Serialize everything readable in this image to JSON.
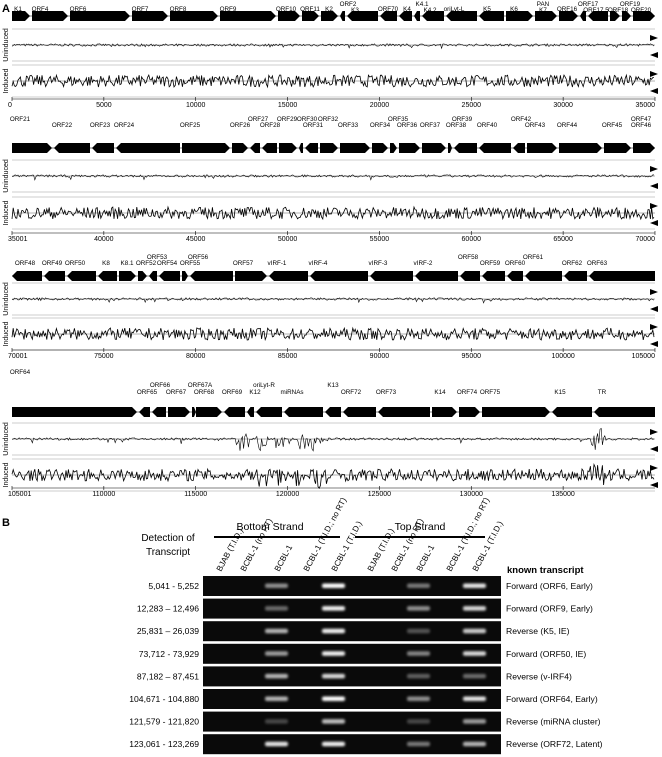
{
  "panel_a": {
    "label": "A",
    "track_labels": [
      "Uninduced",
      "Induced"
    ],
    "rows": [
      {
        "genes": [
          "K1",
          "ORF4",
          "ORF6",
          "ORF7",
          "ORF8",
          "ORF9",
          "ORF10",
          "ORF11",
          "K2",
          "ORF2",
          "K3",
          "ORF70",
          "K4",
          "K4.1",
          "K4.2",
          "oriLyt-L",
          "K5",
          "K6",
          "PAN",
          "K7",
          "ORF16",
          "ORF17",
          "ORF17.5",
          "ORF18",
          "ORF19",
          "ORF20"
        ],
        "ticks": [
          0,
          5000,
          10000,
          15000,
          20000,
          25000,
          30000,
          35000
        ]
      },
      {
        "genes": [
          "ORF21",
          "ORF22",
          "ORF23",
          "ORF24",
          "ORF25",
          "ORF26",
          "ORF27",
          "ORF28",
          "ORF29",
          "ORF30",
          "ORF31",
          "ORF32",
          "ORF33",
          "ORF34",
          "ORF35",
          "ORF36",
          "ORF37",
          "ORF38",
          "ORF39",
          "ORF40",
          "ORF42",
          "ORF43",
          "ORF44",
          "ORF45",
          "ORF47",
          "ORF46"
        ],
        "ticks": [
          35001,
          40000,
          45000,
          50000,
          55000,
          60000,
          65000,
          70000
        ]
      },
      {
        "genes": [
          "ORF48",
          "ORF49",
          "ORF50",
          "K8",
          "K8.1",
          "ORF52",
          "ORF53",
          "ORF54",
          "ORF55",
          "ORF56",
          "ORF57",
          "vIRF-1",
          "vIRF-4",
          "vIRF-3",
          "vIRF-2",
          "ORF58",
          "ORF59",
          "ORF60",
          "ORF61",
          "ORF62",
          "ORF63"
        ],
        "ticks": [
          70001,
          75000,
          80000,
          85000,
          90000,
          95000,
          100000,
          105000
        ]
      },
      {
        "genes": [
          "ORF64",
          "ORF65",
          "ORF66",
          "ORF67",
          "ORF67A",
          "ORF68",
          "ORF69",
          "K12",
          "oriLyt-R",
          "miRNAs",
          "K13",
          "ORF72",
          "ORF73",
          "K14",
          "ORF74",
          "ORF75",
          "K15",
          "TR"
        ],
        "ticks": [
          105001,
          110000,
          115000,
          120000,
          125000,
          130000,
          135000
        ]
      }
    ]
  },
  "panel_b": {
    "label": "B",
    "detection_label": [
      "Detection of",
      "Transcript"
    ],
    "strands": [
      "Bottom Strand",
      "Top Strand"
    ],
    "lanes": [
      "BJAB (T.I.D.)",
      "BCBL-1 (no RT)",
      "BCBL-1",
      "BCBL-1 (T.I.D.; no RT)",
      "BCBL-1 (T.I.D.)",
      "BJAB (T.I.D.)",
      "BCBL-1 (no RT)",
      "BCBL-1",
      "BCBL-1 (T.I.D.; no RT)",
      "BCBL-1 (T.I.D.)"
    ],
    "known_header": "known transcript",
    "rows": [
      {
        "region": "5,041 - 5,252",
        "transcript": "Forward (ORF6, Early)"
      },
      {
        "region": "12,283 – 12,496",
        "transcript": "Forward (ORF9, Early)"
      },
      {
        "region": "25,831 – 26,039",
        "transcript": "Reverse (K5, IE)"
      },
      {
        "region": "73,712 - 73,929",
        "transcript": "Forward (ORF50, IE)"
      },
      {
        "region": "87,182 – 87,451",
        "transcript": "Reverse (v-IRF4)"
      },
      {
        "region": "104,671 - 104,880",
        "transcript": "Forward (ORF64, Early)"
      },
      {
        "region": "121,579 - 121,820",
        "transcript": "Reverse (miRNA cluster)"
      },
      {
        "region": "123,061 - 123,269",
        "transcript": "Reverse (ORF72, Latent)"
      }
    ]
  }
}
